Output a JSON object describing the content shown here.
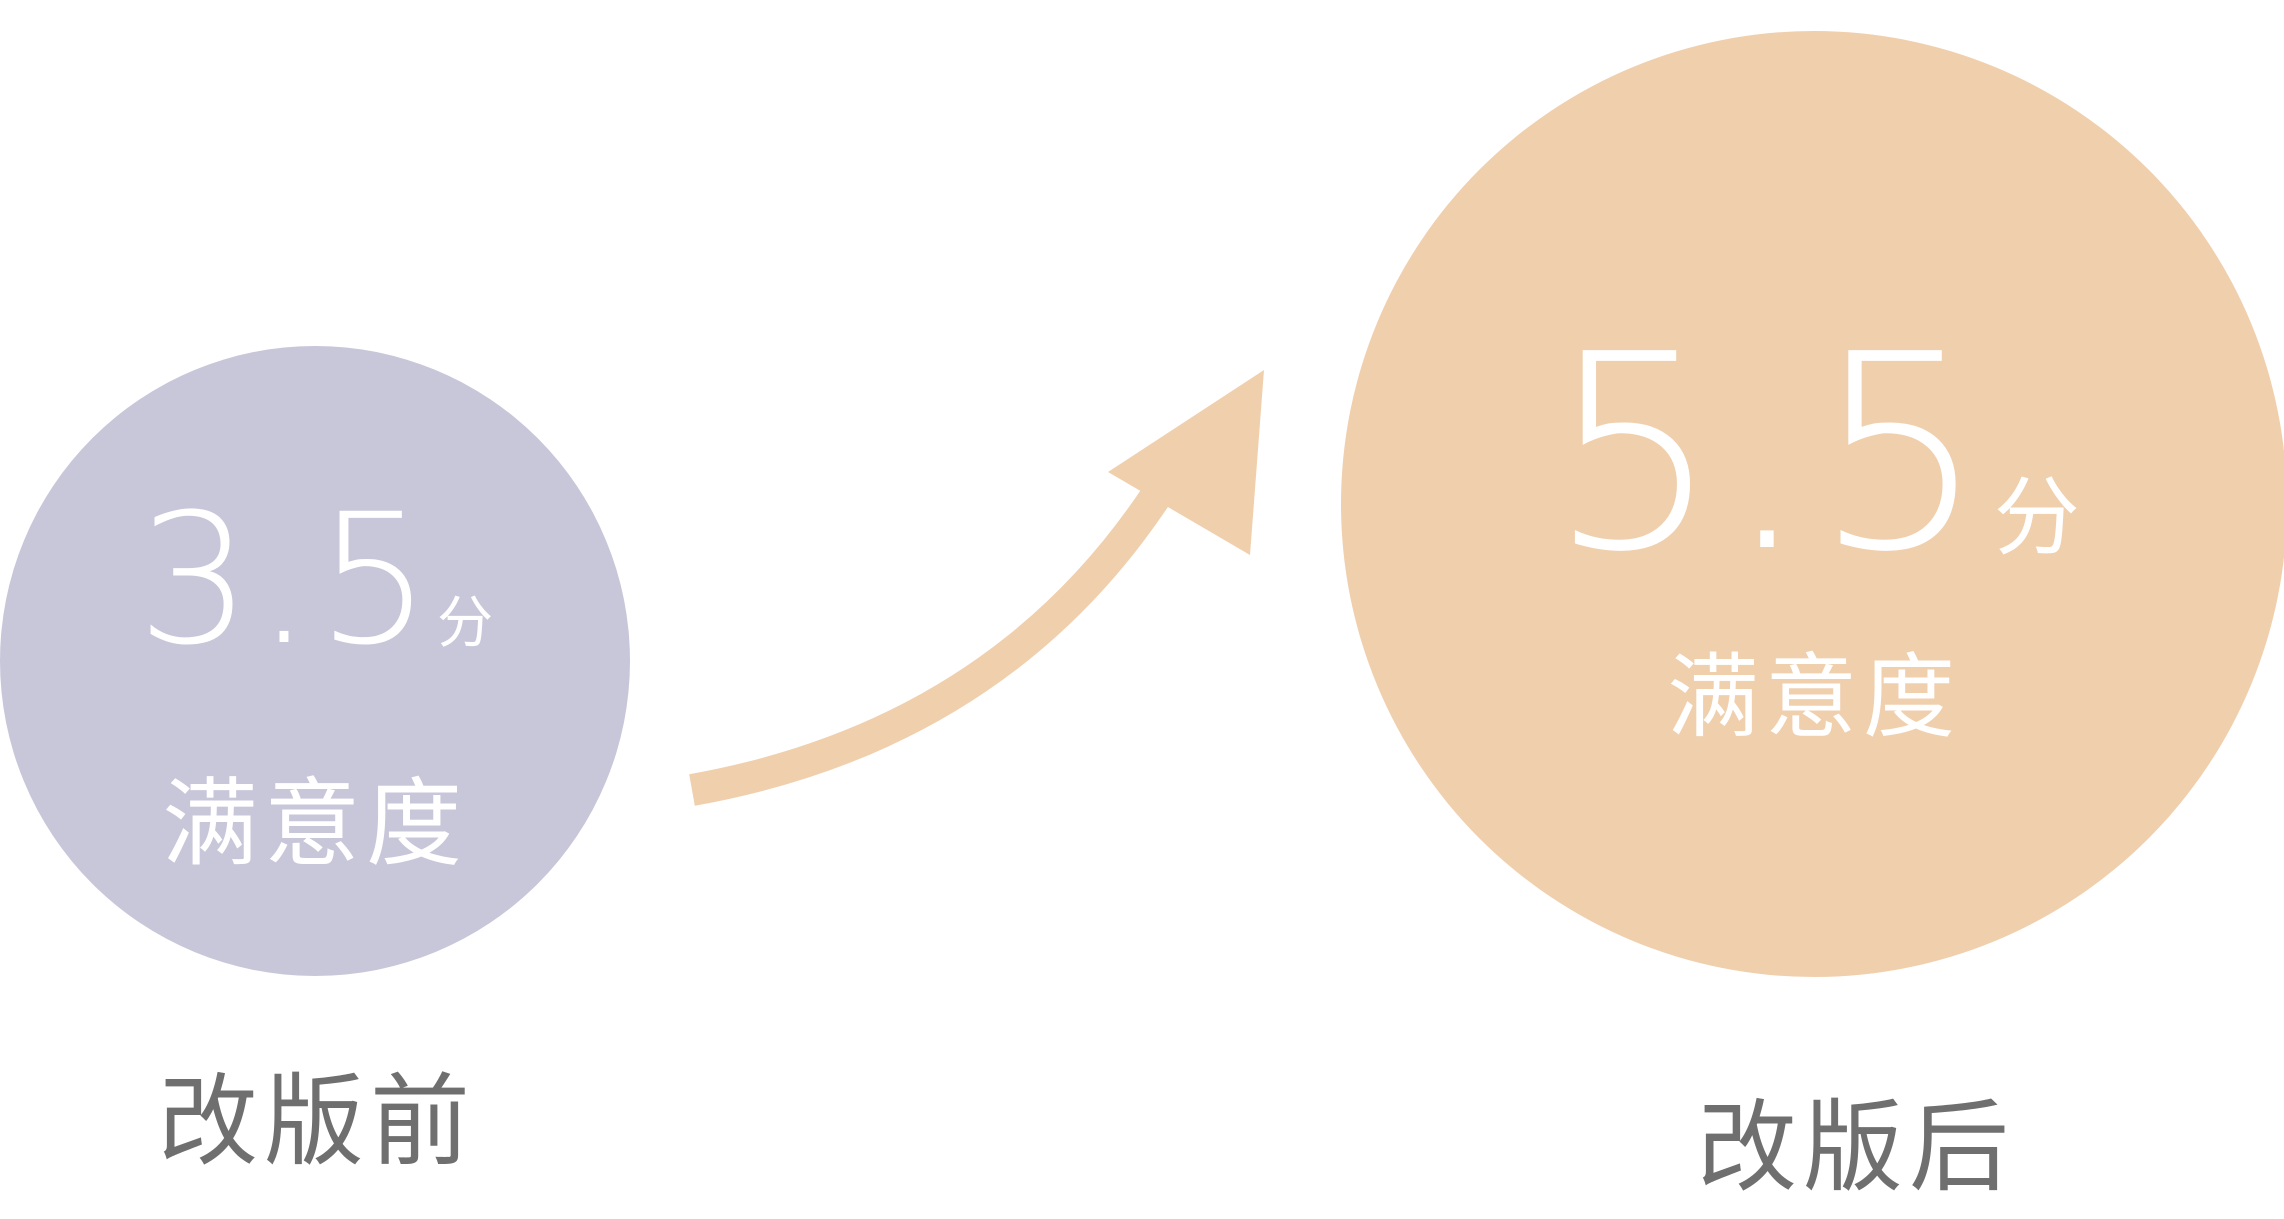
{
  "colors": {
    "before_bubble": "#c8c6d9",
    "after_bubble": "#f0cfad",
    "arrow": "#f0cfad",
    "bubble_text": "#ffffff",
    "caption_text": "#6f6f6f"
  },
  "before": {
    "score": "3.5",
    "unit": "分",
    "metric": "满意度",
    "caption": "改版前"
  },
  "after": {
    "score": "5.5",
    "unit": "分",
    "metric": "满意度",
    "caption": "改版后"
  },
  "connector": {
    "icon": "arrow-up-right-icon"
  }
}
